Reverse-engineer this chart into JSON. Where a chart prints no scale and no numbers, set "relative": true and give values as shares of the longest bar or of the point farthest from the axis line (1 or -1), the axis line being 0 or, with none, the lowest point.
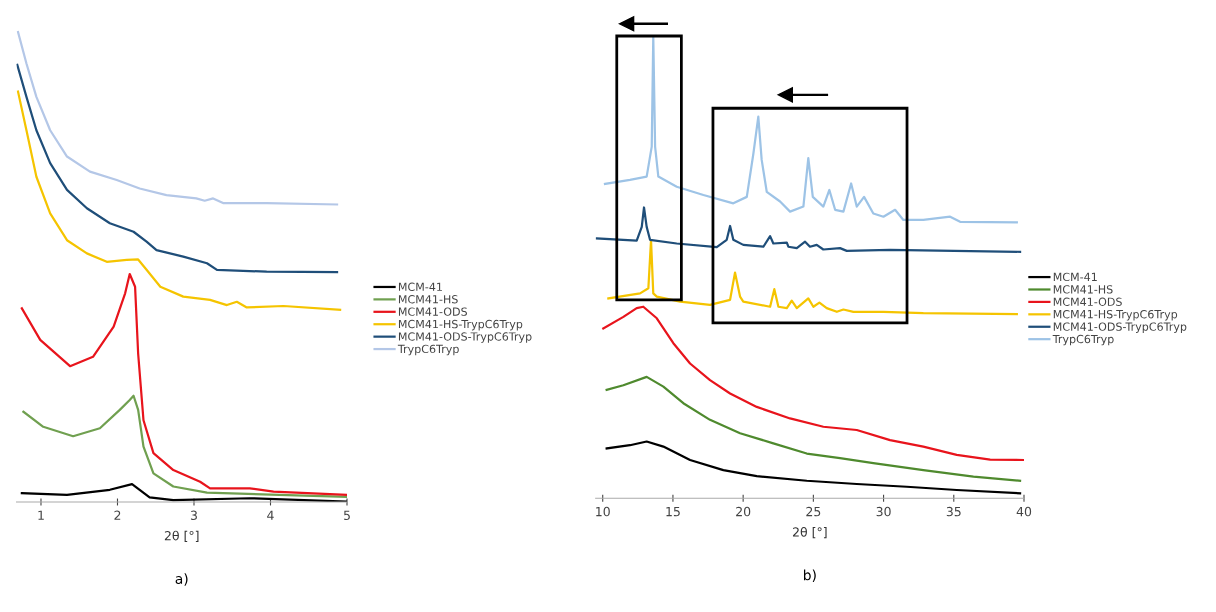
{
  "chart_data": [
    {
      "type": "line",
      "relative": true,
      "xlim": [
        0.68,
        5
      ],
      "xticks": [
        1,
        2,
        3,
        4,
        5
      ],
      "xlabel": "2θ [°]",
      "tick_labels": "x",
      "legend": "right",
      "annotations": [
        "a)"
      ],
      "series": [
        {
          "name": "MCM-41",
          "color": "#000000",
          "x": [
            0.75,
            1.34,
            1.9,
            2.19,
            2.29,
            2.42,
            2.73,
            3.73,
            4.99
          ],
          "values": [
            0.019,
            0.015,
            0.026,
            0.038,
            0.026,
            0.01,
            0.004,
            0.008,
            0.001
          ]
        },
        {
          "name": "MCM41-HS",
          "color": "#70a050",
          "x": [
            0.77,
            1.03,
            1.42,
            1.77,
            2.03,
            2.16,
            2.21,
            2.27,
            2.34,
            2.47,
            2.73,
            3.17,
            5.0
          ],
          "values": [
            0.192,
            0.16,
            0.14,
            0.157,
            0.196,
            0.217,
            0.226,
            0.196,
            0.118,
            0.061,
            0.033,
            0.02,
            0.011
          ]
        },
        {
          "name": "MCM41-ODS",
          "color": "#e8141c",
          "x": [
            0.75,
            0.99,
            1.38,
            1.68,
            1.95,
            2.1,
            2.16,
            2.23,
            2.27,
            2.34,
            2.47,
            2.73,
            3.08,
            3.21,
            3.73,
            4.04,
            5.0
          ],
          "values": [
            0.412,
            0.345,
            0.289,
            0.309,
            0.373,
            0.444,
            0.485,
            0.458,
            0.316,
            0.174,
            0.104,
            0.068,
            0.043,
            0.029,
            0.029,
            0.022,
            0.015
          ]
        },
        {
          "name": "MCM41-HS-TrypC6Tryp",
          "color": "#f5c400",
          "x": [
            0.7,
            0.81,
            0.94,
            1.12,
            1.34,
            1.6,
            1.86,
            2.12,
            2.27,
            2.38,
            2.56,
            2.86,
            3.21,
            3.43,
            3.56,
            3.69,
            4.17,
            4.91
          ],
          "values": [
            0.873,
            0.791,
            0.692,
            0.614,
            0.557,
            0.529,
            0.511,
            0.515,
            0.516,
            0.494,
            0.458,
            0.437,
            0.43,
            0.419,
            0.426,
            0.414,
            0.417,
            0.409
          ]
        },
        {
          "name": "MCM41-ODS-TrypC6Tryp",
          "color": "#1f4e79",
          "x": [
            0.69,
            0.81,
            0.94,
            1.12,
            1.34,
            1.6,
            1.9,
            2.21,
            2.38,
            2.51,
            2.86,
            3.17,
            3.3,
            3.95,
            4.87
          ],
          "values": [
            0.93,
            0.862,
            0.791,
            0.721,
            0.664,
            0.625,
            0.593,
            0.575,
            0.554,
            0.536,
            0.522,
            0.508,
            0.494,
            0.49,
            0.489
          ]
        },
        {
          "name": "TrypC6Tryp",
          "color": "#b4c7e7",
          "x": [
            0.7,
            0.81,
            0.94,
            1.12,
            1.34,
            1.64,
            1.99,
            2.29,
            2.64,
            3.03,
            3.14,
            3.25,
            3.38,
            3.95,
            4.87
          ],
          "values": [
            1.0,
            0.933,
            0.862,
            0.791,
            0.735,
            0.703,
            0.685,
            0.667,
            0.653,
            0.646,
            0.641,
            0.646,
            0.636,
            0.636,
            0.633
          ]
        }
      ]
    },
    {
      "type": "line",
      "relative": true,
      "xlim": [
        9.5,
        40
      ],
      "xticks": [
        10,
        15,
        20,
        25,
        30,
        35,
        40
      ],
      "xlabel": "2θ [°]",
      "tick_labels": "x",
      "legend": "right",
      "annotations": [
        "b)"
      ],
      "series": [
        {
          "name": "MCM-41",
          "color": "#000000",
          "x": [
            10.28,
            11.94,
            13.13,
            14.32,
            16.22,
            18.59,
            20.97,
            24.53,
            28.09,
            31.65,
            35.21,
            39.72
          ],
          "values": [
            0.108,
            0.115,
            0.123,
            0.112,
            0.083,
            0.061,
            0.048,
            0.038,
            0.031,
            0.025,
            0.018,
            0.011
          ]
        },
        {
          "name": "MCM41-HS",
          "color": "#4f8a2e",
          "x": [
            10.28,
            11.47,
            13.13,
            14.32,
            15.74,
            17.64,
            19.78,
            22.15,
            24.53,
            26.9,
            29.27,
            32.83,
            36.4,
            39.72
          ],
          "values": [
            0.235,
            0.245,
            0.263,
            0.242,
            0.206,
            0.17,
            0.141,
            0.119,
            0.097,
            0.087,
            0.076,
            0.061,
            0.047,
            0.038
          ]
        },
        {
          "name": "MCM41-ODS",
          "color": "#e8141c",
          "x": [
            10.04,
            11.47,
            12.42,
            12.89,
            13.85,
            15.03,
            16.22,
            17.64,
            19.07,
            20.97,
            23.34,
            25.71,
            28.09,
            30.46,
            32.83,
            35.21,
            37.59,
            39.96
          ],
          "values": [
            0.368,
            0.393,
            0.412,
            0.415,
            0.39,
            0.336,
            0.292,
            0.256,
            0.227,
            0.198,
            0.173,
            0.155,
            0.148,
            0.126,
            0.112,
            0.094,
            0.084,
            0.083
          ]
        },
        {
          "name": "MCM41-HS-TrypC6Tryp",
          "color": "#f5c400",
          "x": [
            10.4,
            12.66,
            13.25,
            13.44,
            13.6,
            13.85,
            15.51,
            17.64,
            19.07,
            19.42,
            19.78,
            20.01,
            21.92,
            22.22,
            22.51,
            23.11,
            23.46,
            23.82,
            24.64,
            25.0,
            25.43,
            25.95,
            26.67,
            27.14,
            27.85,
            29.99,
            32.83,
            39.49
          ],
          "values": [
            0.433,
            0.444,
            0.455,
            0.559,
            0.444,
            0.437,
            0.426,
            0.419,
            0.43,
            0.489,
            0.437,
            0.426,
            0.415,
            0.453,
            0.415,
            0.412,
            0.428,
            0.412,
            0.433,
            0.415,
            0.424,
            0.412,
            0.404,
            0.409,
            0.404,
            0.404,
            0.401,
            0.399
          ]
        },
        {
          "name": "MCM41-ODS-TrypC6Tryp",
          "color": "#1f4e79",
          "x": [
            9.57,
            12.42,
            12.78,
            12.94,
            13.13,
            13.37,
            15.27,
            18.12,
            18.83,
            19.07,
            19.3,
            20.01,
            21.44,
            21.92,
            22.15,
            23.11,
            23.22,
            23.82,
            24.41,
            24.76,
            25.24,
            25.71,
            26.9,
            27.38,
            30.46,
            39.72
          ],
          "values": [
            0.563,
            0.558,
            0.588,
            0.63,
            0.588,
            0.56,
            0.552,
            0.544,
            0.56,
            0.59,
            0.56,
            0.549,
            0.545,
            0.568,
            0.552,
            0.554,
            0.545,
            0.542,
            0.556,
            0.545,
            0.549,
            0.539,
            0.542,
            0.536,
            0.538,
            0.534
          ]
        },
        {
          "name": "TrypC6Tryp",
          "color": "#9dc3e6",
          "x": [
            10.16,
            11.94,
            13.13,
            13.49,
            13.6,
            13.73,
            13.96,
            15.27,
            17.17,
            19.3,
            20.26,
            20.73,
            21.08,
            21.32,
            21.68,
            22.63,
            23.34,
            24.29,
            24.64,
            24.96,
            25.71,
            26.14,
            26.55,
            27.14,
            27.69,
            28.09,
            28.61,
            29.27,
            29.99,
            30.82,
            31.41,
            32.83,
            34.74,
            35.45,
            39.49
          ],
          "values": [
            0.681,
            0.69,
            0.697,
            0.762,
            1.0,
            0.762,
            0.697,
            0.675,
            0.657,
            0.639,
            0.653,
            0.747,
            0.827,
            0.733,
            0.664,
            0.643,
            0.621,
            0.632,
            0.737,
            0.653,
            0.632,
            0.668,
            0.625,
            0.621,
            0.682,
            0.632,
            0.653,
            0.617,
            0.61,
            0.625,
            0.603,
            0.603,
            0.61,
            0.599,
            0.598
          ]
        }
      ]
    }
  ]
}
